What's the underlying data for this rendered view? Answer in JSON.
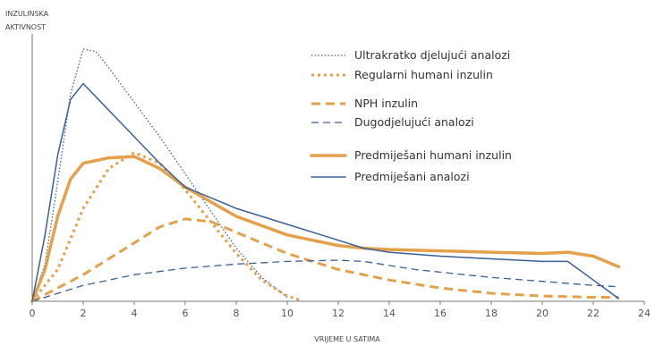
{
  "chart_data": {
    "type": "line",
    "title": "",
    "ylabel": "INZULINSKA AKTIVNOST",
    "ylabel_lines": [
      "INZULINSKA",
      "AKTIVNOST"
    ],
    "xlabel": "VRIJEME U SATIMA",
    "xlim": [
      0,
      24
    ],
    "ylim": [
      0,
      100
    ],
    "x_ticks": [
      "0",
      "2",
      "4",
      "6",
      "8",
      "10",
      "12",
      "14",
      "16",
      "18",
      "20",
      "22",
      "24"
    ],
    "grid": false,
    "legend_position": "top-right",
    "series": [
      {
        "name": "Ultrakratko djelujući analozi",
        "style": "dotted-thin",
        "color": "#3a5f96",
        "points": [
          [
            0,
            0
          ],
          [
            0.5,
            14
          ],
          [
            1,
            45
          ],
          [
            1.5,
            78
          ],
          [
            2,
            95
          ],
          [
            2.5,
            94
          ],
          [
            3,
            88
          ],
          [
            4,
            75
          ],
          [
            5,
            62
          ],
          [
            6,
            48
          ],
          [
            7,
            34
          ],
          [
            8,
            20
          ],
          [
            9,
            9
          ],
          [
            10,
            1.5
          ]
        ]
      },
      {
        "name": "Regularni humani inzulin",
        "style": "dotted-thick",
        "color": "#e5a04b",
        "points": [
          [
            0,
            0
          ],
          [
            1,
            12
          ],
          [
            2,
            35
          ],
          [
            3,
            50
          ],
          [
            4,
            56
          ],
          [
            5,
            52
          ],
          [
            6,
            42
          ],
          [
            7,
            30
          ],
          [
            8,
            18
          ],
          [
            9,
            8
          ],
          [
            10,
            2
          ],
          [
            10.5,
            0.5
          ]
        ]
      },
      {
        "name": "NPH inzulin",
        "style": "dashed-thick",
        "color": "#e5a04b",
        "points": [
          [
            0,
            0
          ],
          [
            2,
            10
          ],
          [
            4,
            22
          ],
          [
            5,
            28
          ],
          [
            6,
            31
          ],
          [
            7,
            30
          ],
          [
            8,
            26
          ],
          [
            10,
            18
          ],
          [
            12,
            12
          ],
          [
            14,
            8
          ],
          [
            16,
            5
          ],
          [
            18,
            3
          ],
          [
            20,
            2
          ],
          [
            22,
            1.5
          ],
          [
            23,
            1.5
          ]
        ]
      },
      {
        "name": "Dugodjelujući analozi",
        "style": "dashed-thin",
        "color": "#3a5f96",
        "points": [
          [
            0,
            0
          ],
          [
            2,
            6
          ],
          [
            4,
            10
          ],
          [
            6,
            12.5
          ],
          [
            8,
            14
          ],
          [
            10,
            15
          ],
          [
            12,
            15.5
          ],
          [
            13,
            15
          ],
          [
            15,
            12
          ],
          [
            18,
            9
          ],
          [
            20,
            7.5
          ],
          [
            22,
            6
          ],
          [
            23,
            5.5
          ]
        ]
      },
      {
        "name": "Predmiješani humani inzulin",
        "style": "solid-thick",
        "color": "#e5a04b",
        "points": [
          [
            0,
            0
          ],
          [
            0.5,
            12
          ],
          [
            1,
            32
          ],
          [
            1.5,
            46
          ],
          [
            2,
            52
          ],
          [
            3,
            54
          ],
          [
            4,
            54.5
          ],
          [
            5,
            50
          ],
          [
            6,
            43
          ],
          [
            8,
            32
          ],
          [
            10,
            25
          ],
          [
            12,
            21
          ],
          [
            13,
            20
          ],
          [
            14,
            19.5
          ],
          [
            16,
            19
          ],
          [
            18,
            18.5
          ],
          [
            20,
            18
          ],
          [
            21,
            18.5
          ],
          [
            22,
            17
          ],
          [
            23,
            13
          ]
        ]
      },
      {
        "name": "Predmiješani analozi",
        "style": "solid-thin",
        "color": "#3a5f96",
        "points": [
          [
            0,
            0
          ],
          [
            0.5,
            25
          ],
          [
            1,
            55
          ],
          [
            1.5,
            76
          ],
          [
            2,
            82
          ],
          [
            3,
            72
          ],
          [
            4,
            62
          ],
          [
            5,
            52
          ],
          [
            6,
            43
          ],
          [
            8,
            35
          ],
          [
            10,
            29
          ],
          [
            12,
            23
          ],
          [
            13,
            20
          ],
          [
            14,
            18.5
          ],
          [
            16,
            17
          ],
          [
            18,
            16
          ],
          [
            20,
            15
          ],
          [
            21,
            15
          ],
          [
            22,
            8
          ],
          [
            23,
            1
          ]
        ]
      }
    ]
  }
}
